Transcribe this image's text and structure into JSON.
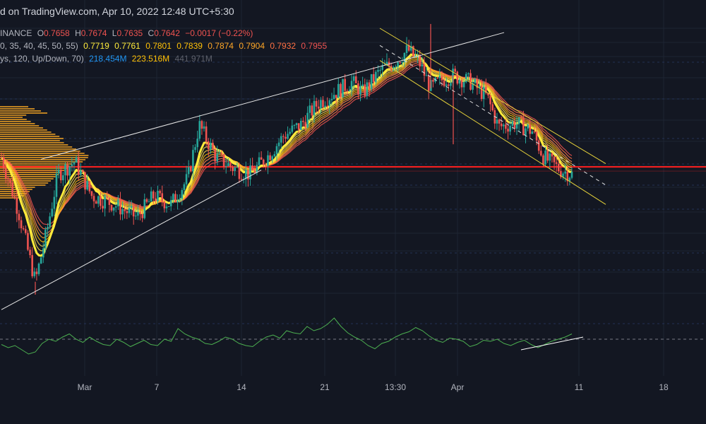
{
  "header": {
    "published_on": "d on TradingView.com, Apr 10, 2022 12:48 UTC+5:30",
    "symbol_suffix": "INANCE",
    "ohlc": {
      "o_label": "O",
      "o": "0.7658",
      "h_label": "H",
      "h": "0.7674",
      "l_label": "L",
      "l": "0.7635",
      "c_label": "C",
      "c": "0.7642",
      "change": "−0.0017 (−0.22%)"
    },
    "ma_ribbon": {
      "params": "0, 35, 40, 45, 50, 55)",
      "values": [
        "0.7719",
        "0.7761",
        "0.7801",
        "0.7839",
        "0.7874",
        "0.7904",
        "0.7932",
        "0.7955"
      ]
    },
    "volume_profile": {
      "params": "ys, 120, Up/Down, 70)",
      "up": "218.454M",
      "down": "223.516M",
      "total": "441.971M"
    }
  },
  "colors": {
    "background": "#131722",
    "up_candle": "#26a69a",
    "down_candle": "#ef5350",
    "resistance_line": "#ff1e1e",
    "channel": "#e6d23a",
    "wedge": "#e6e6e6",
    "rsi": "#4caf50",
    "volume_profile": "#f5a623"
  },
  "chart_data": {
    "type": "candlestick",
    "description_axis": "time",
    "x_ticks": [
      "Mar",
      "7",
      "14",
      "21",
      "13:30",
      "Apr",
      "11",
      "18"
    ],
    "price_series": {
      "name": "Close",
      "anchors": [
        {
          "t": 0,
          "p": 0.77
        },
        {
          "t": 3,
          "p": 0.745
        },
        {
          "t": 6,
          "p": 0.712
        },
        {
          "t": 8,
          "p": 0.735
        },
        {
          "t": 10,
          "p": 0.762
        },
        {
          "t": 13,
          "p": 0.768
        },
        {
          "t": 16,
          "p": 0.752
        },
        {
          "t": 20,
          "p": 0.748
        },
        {
          "t": 24,
          "p": 0.742
        },
        {
          "t": 27,
          "p": 0.752
        },
        {
          "t": 30,
          "p": 0.748
        },
        {
          "t": 33,
          "p": 0.76
        },
        {
          "t": 35,
          "p": 0.785
        },
        {
          "t": 38,
          "p": 0.77
        },
        {
          "t": 41,
          "p": 0.765
        },
        {
          "t": 44,
          "p": 0.762
        },
        {
          "t": 47,
          "p": 0.77
        },
        {
          "t": 50,
          "p": 0.78
        },
        {
          "t": 53,
          "p": 0.785
        },
        {
          "t": 56,
          "p": 0.795
        },
        {
          "t": 59,
          "p": 0.8
        },
        {
          "t": 62,
          "p": 0.805
        },
        {
          "t": 64,
          "p": 0.8
        },
        {
          "t": 67,
          "p": 0.81
        },
        {
          "t": 70,
          "p": 0.815
        },
        {
          "t": 72,
          "p": 0.82
        },
        {
          "t": 74,
          "p": 0.814
        },
        {
          "t": 76,
          "p": 0.802
        },
        {
          "t": 78,
          "p": 0.806
        },
        {
          "t": 80,
          "p": 0.808
        },
        {
          "t": 83,
          "p": 0.805
        },
        {
          "t": 86,
          "p": 0.798
        },
        {
          "t": 88,
          "p": 0.784
        },
        {
          "t": 91,
          "p": 0.786
        },
        {
          "t": 94,
          "p": 0.782
        },
        {
          "t": 96,
          "p": 0.77
        },
        {
          "t": 99,
          "p": 0.764
        },
        {
          "t": 101,
          "p": 0.762
        }
      ]
    },
    "horizontal_resistance": 0.7655,
    "rsi_series": {
      "name": "RSI",
      "values": [
        45,
        42,
        44,
        40,
        36,
        38,
        46,
        50,
        48,
        52,
        55,
        50,
        47,
        52,
        48,
        45,
        44,
        50,
        47,
        43,
        46,
        49,
        45,
        44,
        50,
        48,
        60,
        55,
        52,
        50,
        46,
        45,
        48,
        52,
        50,
        46,
        44,
        43,
        48,
        52,
        54,
        51,
        58,
        56,
        55,
        62,
        58,
        60,
        64,
        70,
        62,
        56,
        52,
        49,
        44,
        41,
        46,
        48,
        52,
        55,
        57,
        61,
        58,
        53,
        49,
        47,
        51,
        50,
        48,
        43,
        45,
        49,
        48,
        50,
        46,
        44,
        47,
        49,
        45,
        42,
        45,
        48,
        50,
        52,
        55
      ],
      "midline": 50
    },
    "grid": true
  }
}
